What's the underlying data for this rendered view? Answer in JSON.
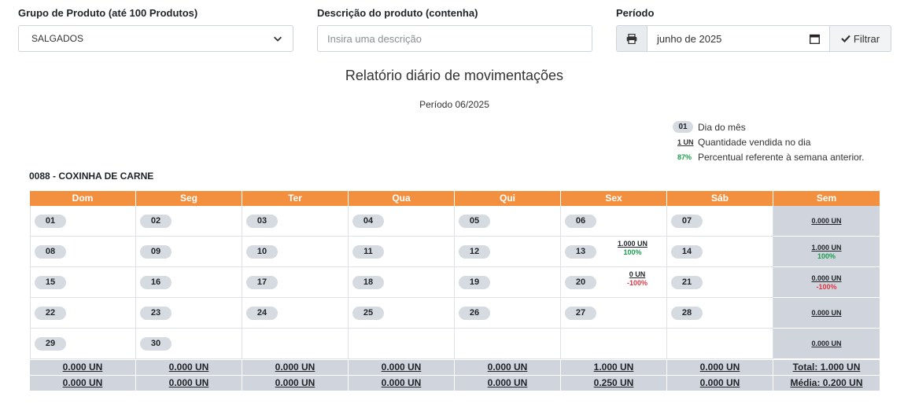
{
  "filters": {
    "group_label": "Grupo de Produto (até 100 Produtos)",
    "group_value": "SALGADOS",
    "description_label": "Descrição do produto (contenha)",
    "description_placeholder": "Insira uma descrição",
    "description_value": "",
    "period_label": "Período",
    "period_value": "junho de 2025",
    "filter_button": "Filtrar"
  },
  "report": {
    "title": "Relatório diário de movimentações",
    "period": "Período 06/2025"
  },
  "legend": [
    {
      "key": "01",
      "text": "Dia do mês"
    },
    {
      "key": "1 UN",
      "text": "Quantidade vendida no dia"
    },
    {
      "key": "87%",
      "text": "Percentual referente à semana anterior."
    }
  ],
  "product": {
    "code": "0088",
    "separator": " - ",
    "name": "COXINHA DE CARNE"
  },
  "calendar": {
    "headers": [
      "Dom",
      "Seg",
      "Ter",
      "Qua",
      "Qui",
      "Sex",
      "Sáb",
      "Sem"
    ],
    "weeks": [
      {
        "days": [
          {
            "d": "01"
          },
          {
            "d": "02"
          },
          {
            "d": "03"
          },
          {
            "d": "04"
          },
          {
            "d": "05"
          },
          {
            "d": "06"
          },
          {
            "d": "07"
          }
        ],
        "sem": {
          "qty": "0.000 UN",
          "pct": ""
        }
      },
      {
        "days": [
          {
            "d": "08"
          },
          {
            "d": "09"
          },
          {
            "d": "10"
          },
          {
            "d": "11"
          },
          {
            "d": "12"
          },
          {
            "d": "13",
            "qty": "1.000 UN",
            "pct": "100%"
          },
          {
            "d": "14"
          }
        ],
        "sem": {
          "qty": "1.000 UN",
          "pct": "100%"
        }
      },
      {
        "days": [
          {
            "d": "15"
          },
          {
            "d": "16"
          },
          {
            "d": "17"
          },
          {
            "d": "18"
          },
          {
            "d": "19"
          },
          {
            "d": "20",
            "qty": "0 UN",
            "pct": "-100%"
          },
          {
            "d": "21"
          }
        ],
        "sem": {
          "qty": "0.000 UN",
          "pct": "-100%"
        }
      },
      {
        "days": [
          {
            "d": "22"
          },
          {
            "d": "23"
          },
          {
            "d": "24"
          },
          {
            "d": "25"
          },
          {
            "d": "26"
          },
          {
            "d": "27"
          },
          {
            "d": "28"
          }
        ],
        "sem": {
          "qty": "0.000 UN",
          "pct": ""
        }
      },
      {
        "days": [
          {
            "d": "29"
          },
          {
            "d": "30"
          },
          {
            "d": ""
          },
          {
            "d": ""
          },
          {
            "d": ""
          },
          {
            "d": ""
          },
          {
            "d": ""
          }
        ],
        "sem": {
          "qty": "0.000 UN",
          "pct": ""
        }
      }
    ],
    "totals": [
      "0.000 UN",
      "0.000 UN",
      "0.000 UN",
      "0.000 UN",
      "0.000 UN",
      "1.000 UN",
      "0.000 UN",
      "Total: 1.000 UN"
    ],
    "averages": [
      "0.000 UN",
      "0.000 UN",
      "0.000 UN",
      "0.000 UN",
      "0.000 UN",
      "0.250 UN",
      "0.000 UN",
      "Média: 0.200 UN"
    ]
  },
  "colors": {
    "header_orange": "#f39040",
    "positive_green": "#1a9d4d",
    "negative_red": "#dc3545",
    "summary_gray": "#d0d4dd"
  },
  "icons": {
    "print": "printer-icon",
    "calendar": "calendar-icon",
    "filter": "check-icon",
    "select": "chevron-down-icon"
  }
}
